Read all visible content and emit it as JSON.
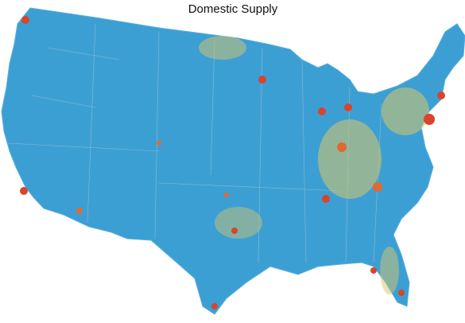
{
  "title": "Domestic Supply"
}
